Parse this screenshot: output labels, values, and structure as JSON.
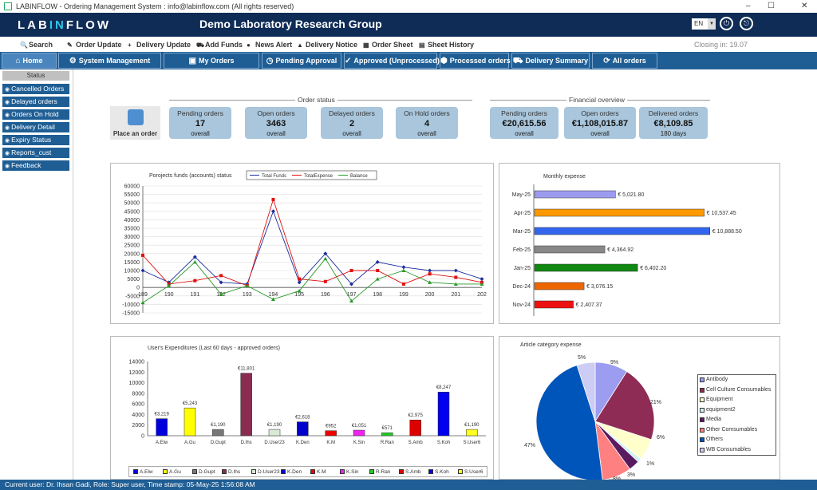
{
  "window": {
    "title": "LABINFLOW - Ordering Management System : info@labinflow.com (All rights reserved)",
    "min": "–",
    "max": "☐",
    "close": "✕"
  },
  "banner": {
    "logo_pre": "LAB",
    "logo_in": "IN",
    "logo_post": "FLOW",
    "org": "Demo Laboratory Research Group",
    "lang": "EN",
    "power_icon": "⏻",
    "logout_icon": "⎋"
  },
  "toolbar": {
    "items": [
      {
        "label": "Search",
        "icon": "🔍"
      },
      {
        "label": "Order Update",
        "icon": "✎"
      },
      {
        "label": "Delivery Update",
        "icon": "+"
      },
      {
        "label": "Add Funds",
        "icon": "⛟"
      },
      {
        "label": "News Alert",
        "icon": "●"
      },
      {
        "label": "Delivery Notice",
        "icon": "▲"
      },
      {
        "label": "Order Sheet",
        "icon": "▦"
      },
      {
        "label": "Sheet History",
        "icon": "▤"
      }
    ],
    "closing": "Closing in: 19.07"
  },
  "nav": {
    "tabs": [
      {
        "label": "Home",
        "icon": "⌂"
      },
      {
        "label": "System Management",
        "icon": "⚙"
      },
      {
        "label": "My Orders",
        "icon": "▣"
      },
      {
        "label": "Pending Approval",
        "icon": "◷"
      },
      {
        "label": "Approved (Unprocessed)",
        "icon": "✓"
      },
      {
        "label": "Processed orders",
        "icon": "⬢"
      },
      {
        "label": "Delivery Summary",
        "icon": "⛟"
      },
      {
        "label": "All orders",
        "icon": "⟳"
      }
    ]
  },
  "sidebar": {
    "header": "Status",
    "items": [
      {
        "label": "Cancelled Orders"
      },
      {
        "label": "Delayed orders"
      },
      {
        "label": "Orders On Hold"
      },
      {
        "label": "Delivery Detail"
      },
      {
        "label": "Expiry Status"
      },
      {
        "label": "Reports_cust"
      },
      {
        "label": "Feedback"
      }
    ]
  },
  "order_status": {
    "label": "Order status",
    "place_order": "Place an order",
    "cards": [
      {
        "label": "Pending orders",
        "value": "17",
        "sub": "overall"
      },
      {
        "label": "Open orders",
        "value": "3463",
        "sub": "overall"
      },
      {
        "label": "Delayed orders",
        "value": "2",
        "sub": "overall"
      },
      {
        "label": "On Hold orders",
        "value": "4",
        "sub": "overall"
      }
    ]
  },
  "financial": {
    "label": "Financial overview",
    "cards": [
      {
        "label": "Pending orders",
        "value": "€20,615.56",
        "sub": "overall"
      },
      {
        "label": "Open orders",
        "value": "€1,108,015.87",
        "sub": "overall"
      },
      {
        "label": "Delivered orders",
        "value": "€8,109.85",
        "sub": "180 days"
      }
    ]
  },
  "status_bar": "Current user: Dr. Ihsan Gadi, Role: Super user, Time stamp: 05-May-25 1:56:08 AM",
  "chart_data": [
    {
      "type": "line",
      "title": "Porojects funds (accounts) status",
      "x": [
        "189",
        "190",
        "191",
        "192",
        "193",
        "194",
        "195",
        "196",
        "197",
        "198",
        "199",
        "200",
        "201",
        "202"
      ],
      "ylim": [
        -15000,
        60000
      ],
      "yticks": [
        -15000,
        -10000,
        -5000,
        0,
        5000,
        10000,
        15000,
        20000,
        25000,
        30000,
        35000,
        40000,
        45000,
        50000,
        55000,
        60000
      ],
      "series": [
        {
          "name": "Total Funds",
          "color": "#1f2f9e",
          "values": [
            10000,
            3000,
            18000,
            3000,
            2000,
            45000,
            3000,
            20000,
            2000,
            15000,
            12000,
            10000,
            10000,
            5000
          ]
        },
        {
          "name": "TotalExpense",
          "color": "#e01010",
          "values": [
            19000,
            2000,
            4000,
            7000,
            1000,
            52000,
            5000,
            3500,
            10000,
            10000,
            2000,
            8000,
            6000,
            3000
          ]
        },
        {
          "name": "Balance",
          "color": "#2a9a2a",
          "values": [
            -9000,
            1000,
            15000,
            -4000,
            1000,
            -7000,
            -2000,
            17000,
            -8000,
            5000,
            10000,
            3000,
            2000,
            2000
          ]
        }
      ]
    },
    {
      "type": "bar",
      "orientation": "horizontal",
      "title": "Monthly expense",
      "categories": [
        "May-25",
        "Apr-25",
        "Mar-25",
        "Feb-25",
        "Jan-25",
        "Dec-24",
        "Nov-24"
      ],
      "values": [
        5021.8,
        10537.45,
        10888.5,
        4364.92,
        6402.2,
        3076.15,
        2407.37
      ],
      "labels": [
        "€ 5,021.80",
        "€ 10,537.45",
        "€ 10,888.50",
        "€ 4,364.92",
        "€ 6,402.20",
        "€ 3,076.15",
        "€ 2,407.37"
      ],
      "colors": [
        "#9b9bf0",
        "#ff9900",
        "#3366ee",
        "#888888",
        "#118811",
        "#ee6600",
        "#ee1111"
      ]
    },
    {
      "type": "bar",
      "title": "User's Expenditures (Last 60 days - approved orders)",
      "categories": [
        "A.Elw",
        "A.Gu",
        "D.Gupt",
        "D.Ihs",
        "D.User23",
        "K.Den",
        "K.M",
        "K.Sin",
        "R.Ran",
        "S.Amb",
        "S.Koh",
        "S.User6"
      ],
      "values": [
        3219,
        5243,
        1190,
        11801,
        1190,
        2618,
        952,
        1051,
        571,
        2975,
        8247,
        1190
      ],
      "labels": [
        "€3,219",
        "€5,243",
        "€1,190",
        "€11,801",
        "€1,190",
        "€2,618",
        "€952",
        "€1,051",
        "€571",
        "€2,975",
        "€8,247",
        "€1,190"
      ],
      "colors": [
        "#0000dd",
        "#ffff00",
        "#777777",
        "#8a2c52",
        "#d8ead4",
        "#0000cc",
        "#ee0000",
        "#ee22ee",
        "#22cc22",
        "#dd0000",
        "#0000ee",
        "#ffff22"
      ],
      "ylim": [
        0,
        14000
      ],
      "yticks": [
        0,
        2000,
        4000,
        6000,
        8000,
        10000,
        12000,
        14000
      ]
    },
    {
      "type": "pie",
      "title": "Article category expense",
      "categories": [
        "Antibody",
        "Cell Culture Consumables",
        "Equipment",
        "equipment2",
        "Media",
        "Other Comsumables",
        "Others",
        "WB Consumables"
      ],
      "values": [
        9,
        21,
        6,
        1,
        3,
        8,
        47,
        5
      ],
      "labels": [
        "9%",
        "21%",
        "6%",
        "1%",
        "3%",
        "8%",
        "47%",
        "5%"
      ],
      "colors": [
        "#9c9cf0",
        "#8e2c55",
        "#ffffcc",
        "#ccf2f2",
        "#5a1a60",
        "#ff8080",
        "#0055bb",
        "#ccccf4"
      ]
    }
  ]
}
